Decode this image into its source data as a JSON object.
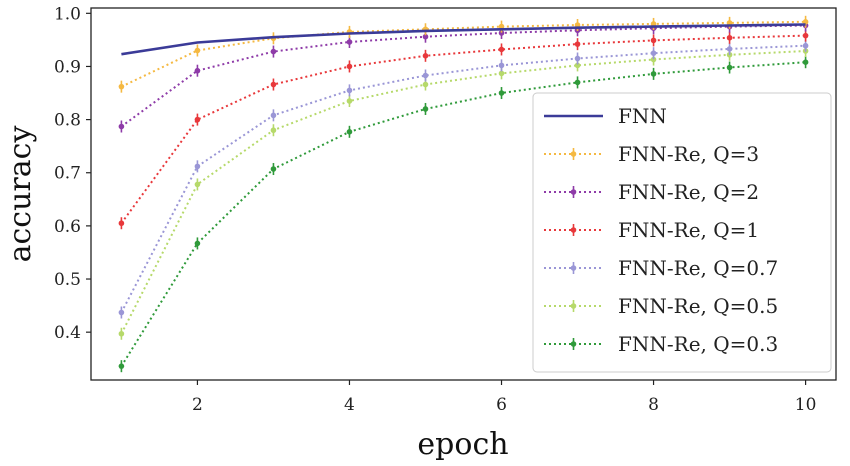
{
  "chart_data": {
    "type": "line",
    "xlabel": "epoch",
    "ylabel": "accuracy",
    "xlim": [
      0.6,
      10.4
    ],
    "ylim": [
      0.31,
      1.01
    ],
    "xticks": [
      2,
      4,
      6,
      8,
      10
    ],
    "yticks": [
      0.4,
      0.5,
      0.6,
      0.7,
      0.8,
      0.9,
      1.0
    ],
    "xtick_labels": [
      "2",
      "4",
      "6",
      "8",
      "10"
    ],
    "ytick_labels": [
      "0.4",
      "0.5",
      "0.6",
      "0.7",
      "0.8",
      "0.9",
      "1.0"
    ],
    "grid": false,
    "legend_position": "lower-right",
    "x": [
      1,
      2,
      3,
      4,
      5,
      6,
      7,
      8,
      9,
      10
    ],
    "series": [
      {
        "name": "FNN",
        "color": "#3b3b98",
        "style": "solid",
        "markers": false,
        "values": [
          0.923,
          0.945,
          0.955,
          0.962,
          0.967,
          0.97,
          0.973,
          0.975,
          0.977,
          0.979
        ]
      },
      {
        "name": "FNN-Re, Q=3",
        "color": "#f5b942",
        "style": "dotted",
        "markers": true,
        "values": [
          0.862,
          0.93,
          0.953,
          0.965,
          0.97,
          0.975,
          0.978,
          0.98,
          0.982,
          0.984
        ]
      },
      {
        "name": "FNN-Re, Q=2",
        "color": "#8e3ba8",
        "style": "dotted",
        "markers": true,
        "values": [
          0.787,
          0.892,
          0.928,
          0.946,
          0.956,
          0.963,
          0.968,
          0.972,
          0.975,
          0.977
        ]
      },
      {
        "name": "FNN-Re, Q=1",
        "color": "#e8383b",
        "style": "dotted",
        "markers": true,
        "values": [
          0.605,
          0.8,
          0.866,
          0.9,
          0.92,
          0.932,
          0.942,
          0.949,
          0.954,
          0.958
        ]
      },
      {
        "name": "FNN-Re, Q=0.7",
        "color": "#9a96d6",
        "style": "dotted",
        "markers": true,
        "values": [
          0.437,
          0.712,
          0.808,
          0.855,
          0.883,
          0.902,
          0.915,
          0.925,
          0.933,
          0.939
        ]
      },
      {
        "name": "FNN-Re, Q=0.5",
        "color": "#b6d96a",
        "style": "dotted",
        "markers": true,
        "values": [
          0.397,
          0.678,
          0.78,
          0.835,
          0.866,
          0.887,
          0.902,
          0.913,
          0.922,
          0.929
        ]
      },
      {
        "name": "FNN-Re, Q=0.3",
        "color": "#2f9a3a",
        "style": "dotted",
        "markers": true,
        "values": [
          0.336,
          0.567,
          0.707,
          0.777,
          0.82,
          0.85,
          0.87,
          0.886,
          0.898,
          0.908
        ]
      }
    ]
  }
}
